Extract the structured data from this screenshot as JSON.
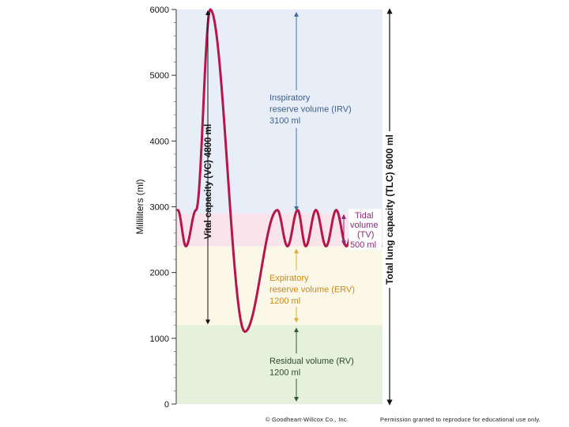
{
  "chart_data": {
    "type": "line",
    "ylabel": "Milliliters (ml)",
    "ylim": [
      0,
      6000
    ],
    "yticks": [
      0,
      1000,
      2000,
      3000,
      4000,
      5000,
      6000
    ],
    "series": [
      {
        "values_description_free": true,
        "trace": [
          {
            "x": 0.0,
            "y": 2950
          },
          {
            "x": 0.04,
            "y": 2400
          },
          {
            "x": 0.09,
            "y": 2950
          },
          {
            "x": 0.16,
            "y": 6000
          },
          {
            "x": 0.33,
            "y": 1100
          },
          {
            "x": 0.49,
            "y": 2950
          },
          {
            "x": 0.54,
            "y": 2400
          },
          {
            "x": 0.59,
            "y": 2950
          },
          {
            "x": 0.63,
            "y": 2400
          },
          {
            "x": 0.68,
            "y": 2950
          },
          {
            "x": 0.73,
            "y": 2400
          },
          {
            "x": 0.78,
            "y": 2950
          },
          {
            "x": 0.83,
            "y": 2400
          },
          {
            "x": 0.88,
            "y": 2950
          },
          {
            "x": 0.92,
            "y": 2400
          },
          {
            "x": 0.97,
            "y": 2950
          },
          {
            "x": 1.0,
            "y": 2400
          }
        ]
      }
    ],
    "zones": [
      {
        "label_lines": [
          "Inspiratory",
          "reserve volume (IRV)",
          "3100 ml"
        ],
        "from": 2900,
        "to": 6000,
        "color": "#e7eef8"
      },
      {
        "label_lines": [
          "Tidal",
          "volume",
          "(TV)",
          "500 ml"
        ],
        "from": 2400,
        "to": 2900,
        "color": "#f8e4ea"
      },
      {
        "label_lines": [
          "Expiratory",
          "reserve volume (ERV)",
          "1200 ml"
        ],
        "from": 1200,
        "to": 2400,
        "color": "#fbf8e7"
      },
      {
        "label_lines": [
          "Residual volume (RV)",
          "1200 ml"
        ],
        "from": 0,
        "to": 1200,
        "color": "#e5f1dd"
      }
    ],
    "capacities": [
      {
        "label": "Vital capacity (VC) 4800 ml",
        "from": 1200,
        "to": 6000
      },
      {
        "label": "Total lung capacity (TLC) 6000 ml",
        "from": 0,
        "to": 6000
      }
    ],
    "colors": {
      "trace": "#b5174a",
      "irv_arrow": "#3f6fa8",
      "tv_arrow": "#8a2a7a",
      "erv_arrow": "#e3a93a",
      "rv_arrow": "#2d5a2d",
      "irv_text": "#3f5f8f",
      "tv_text": "#8a2a7a",
      "erv_text": "#c7891f",
      "rv_text": "#2d4a2d"
    }
  },
  "footer": {
    "copyright": "© Goodheart-Willcox Co., Inc.",
    "permission": "Permission granted to reproduce for educational use only."
  }
}
